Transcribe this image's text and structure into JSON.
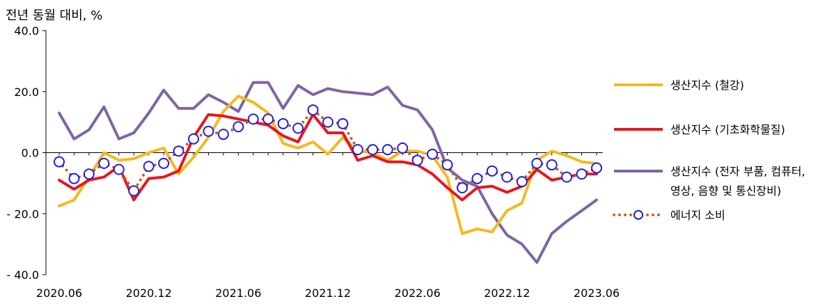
{
  "chart_data": {
    "type": "line",
    "ylabel": "전년 동월 대비, %",
    "ylim": [
      -40,
      40
    ],
    "yticks": [
      40,
      20,
      0,
      -20,
      -40
    ],
    "ytick_labels": [
      "40.0",
      "20.0",
      "0.0",
      "- 20.0",
      "- 40.0"
    ],
    "x": [
      "2020.06",
      "2020.07",
      "2020.08",
      "2020.09",
      "2020.10",
      "2020.11",
      "2020.12",
      "2021.01",
      "2021.02",
      "2021.03",
      "2021.04",
      "2021.05",
      "2021.06",
      "2021.07",
      "2021.08",
      "2021.09",
      "2021.10",
      "2021.11",
      "2021.12",
      "2022.01",
      "2022.02",
      "2022.03",
      "2022.04",
      "2022.05",
      "2022.06",
      "2022.07",
      "2022.08",
      "2022.09",
      "2022.10",
      "2022.11",
      "2022.12",
      "2023.01",
      "2023.02",
      "2023.03",
      "2023.04",
      "2023.05",
      "2023.06"
    ],
    "xtick_labels": [
      "2020.06",
      "2020.12",
      "2021.06",
      "2021.12",
      "2022.06",
      "2022.12",
      "2023.06"
    ],
    "legend_position": "right",
    "series": [
      {
        "name": "생산지수 (철강)",
        "color": "#F5B91E",
        "style": "line",
        "values": [
          -17.5,
          -15.5,
          -8,
          0,
          -2.5,
          -2,
          0,
          1.5,
          -7,
          -1.5,
          5,
          13.5,
          18.5,
          16.5,
          13,
          3,
          1.5,
          3.5,
          -0.5,
          5,
          0.5,
          0,
          -2.5,
          0.5,
          0.5,
          -1,
          -8,
          -26.5,
          -25,
          -26,
          -19,
          -16.5,
          -2.5,
          0.5,
          -1,
          -3,
          -3.5
        ]
      },
      {
        "name": "생산지수 (기초화학물질)",
        "color": "#E8161A",
        "style": "line",
        "values": [
          -9,
          -12,
          -9,
          -8,
          -4.5,
          -15.5,
          -8.5,
          -8,
          -6,
          5,
          12.5,
          12,
          11,
          10,
          9,
          5.5,
          3.5,
          12.5,
          6.5,
          6.5,
          -2.5,
          -1,
          -3,
          -3,
          -4,
          -7,
          -11.5,
          -15.5,
          -11.5,
          -11,
          -13,
          -11,
          -5.5,
          -9,
          -8,
          -7,
          -7
        ]
      },
      {
        "name": "생산지수 (전자 부품, 컴퓨터,",
        "name_line2": "영상, 음향 및 통신장비)",
        "color": "#8064A2",
        "style": "line",
        "values": [
          13,
          4.5,
          7.5,
          15,
          4.5,
          6.5,
          13,
          20.5,
          14.5,
          14.5,
          19,
          16.5,
          13.5,
          23,
          23,
          14.5,
          22,
          19,
          21,
          20,
          19.5,
          19,
          21.5,
          15.5,
          14,
          7.5,
          -5,
          -9,
          -11,
          -20,
          -27,
          -30,
          -36,
          -26.5,
          -22.5,
          -19,
          -15.5
        ]
      },
      {
        "name": "에너지 소비",
        "color": "#C0622C",
        "marker_color": "#1F1FE0",
        "style": "dotted-circle",
        "values": [
          -3,
          -8.5,
          -7,
          -3.5,
          -5.5,
          -12.5,
          -4.5,
          -3.5,
          0.5,
          4.5,
          7,
          6,
          8.5,
          11,
          11,
          9.5,
          8,
          14,
          10,
          9.5,
          1,
          1,
          1,
          1.5,
          -2.5,
          -0.5,
          -4,
          -11.5,
          -8.5,
          -6,
          -8,
          -9.5,
          -3.5,
          -4,
          -8,
          -7,
          -5
        ]
      }
    ]
  }
}
